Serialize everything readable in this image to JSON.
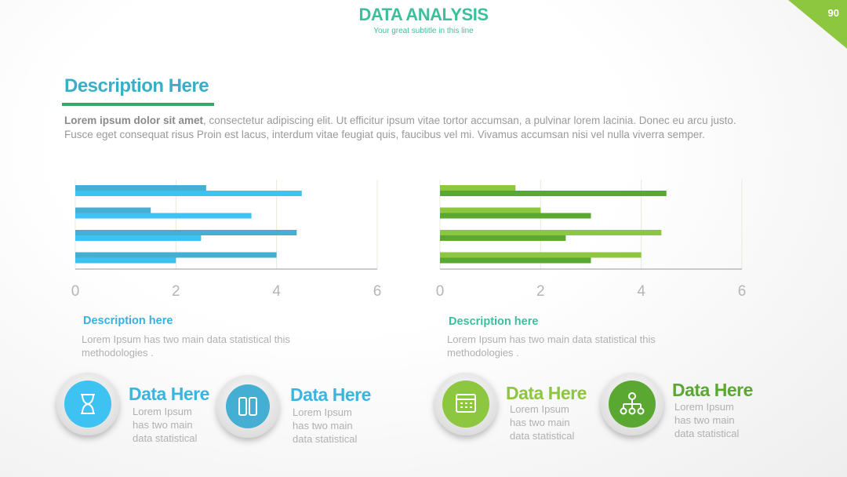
{
  "header": {
    "title": "DATA ANALYSIS",
    "subtitle": "Your great subtitle in this line",
    "page_number": "90"
  },
  "section": {
    "heading": "Description Here",
    "intro_bold": "Lorem ipsum dolor sit amet",
    "intro_text": ", consectetur adipiscing elit. Ut efficitur ipsum vitae tortor accumsan, a pulvinar lorem lacinia. Donec eu arcu justo. Fusce eget consequat risus Proin est lacus, interdum vitae feugiat quis, faucibus vel mi.  Vivamus accumsan nisi vel nulla viverra semper."
  },
  "chart_data": [
    {
      "type": "bar",
      "orientation": "horizontal",
      "categories": [
        null,
        null,
        null,
        null
      ],
      "series": [
        {
          "color": "#45afd3",
          "values": [
            2.6,
            1.5,
            4.4,
            4.0
          ]
        },
        {
          "color": "#3ec2f1",
          "values": [
            4.5,
            3.5,
            2.5,
            2.0
          ]
        }
      ],
      "xlim": [
        0,
        6
      ],
      "xticks": [
        0,
        2,
        4,
        6
      ],
      "grid": true
    },
    {
      "type": "bar",
      "orientation": "horizontal",
      "categories": [
        null,
        null,
        null,
        null
      ],
      "series": [
        {
          "color": "#8dc63f",
          "values": [
            1.5,
            2.0,
            4.4,
            4.0
          ]
        },
        {
          "color": "#5aa832",
          "values": [
            4.5,
            3.0,
            2.5,
            3.0
          ]
        }
      ],
      "xlim": [
        0,
        6
      ],
      "xticks": [
        0,
        2,
        4,
        6
      ],
      "grid": true
    }
  ],
  "panels": [
    {
      "heading": "Description here",
      "text": "Lorem Ipsum has two main data statistical this methodologies ."
    },
    {
      "heading": "Description here",
      "text": "Lorem Ipsum has two main data statistical this methodologies ."
    }
  ],
  "items": [
    {
      "title": "Data Here",
      "text": "Lorem Ipsum has two main data statistical"
    },
    {
      "title": "Data Here",
      "text": "Lorem Ipsum has two main data statistical"
    },
    {
      "title": "Data Here",
      "text": "Lorem Ipsum has two main data statistical"
    },
    {
      "title": "Data Here",
      "text": "Lorem Ipsum has two main data statistical"
    }
  ]
}
